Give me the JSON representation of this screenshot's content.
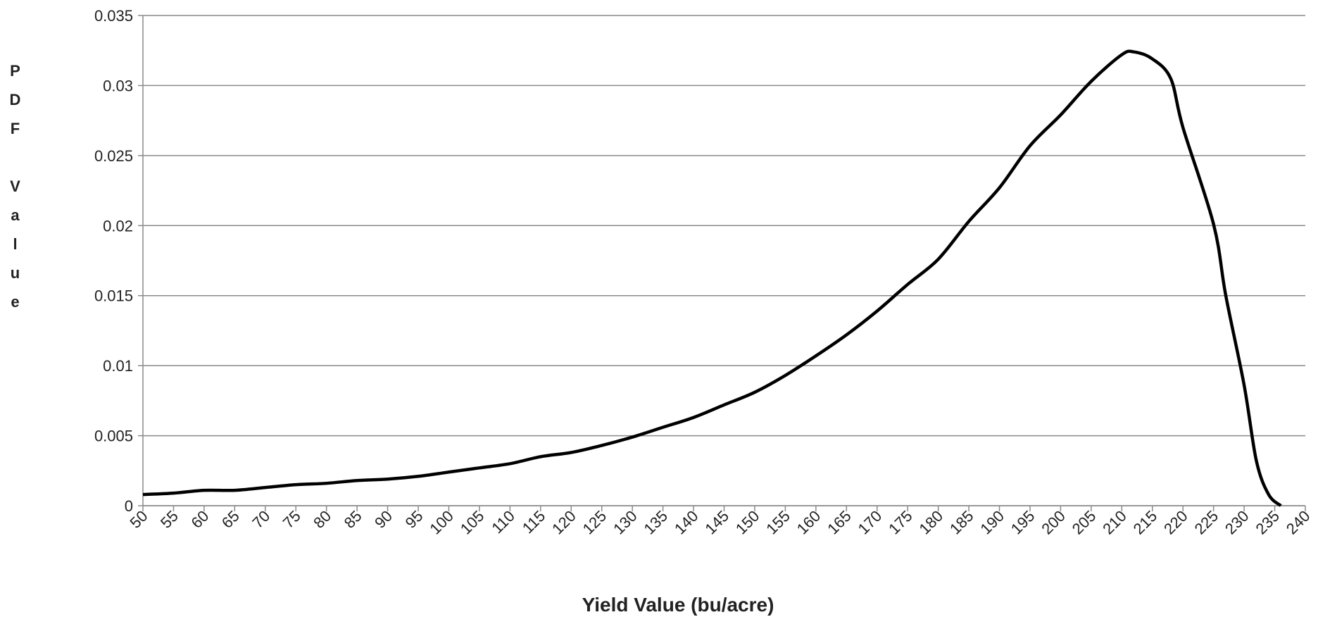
{
  "chart_data": {
    "type": "line",
    "x_label": "Yield Value (bu/acre)",
    "y_label": "PDF Value",
    "x": [
      50,
      55,
      60,
      65,
      70,
      75,
      80,
      85,
      90,
      95,
      100,
      105,
      110,
      115,
      120,
      125,
      130,
      135,
      140,
      145,
      150,
      155,
      160,
      165,
      170,
      175,
      180,
      185,
      190,
      195,
      200,
      205,
      210,
      212,
      215,
      218,
      220,
      225,
      227,
      230,
      232,
      234,
      236
    ],
    "series": [
      {
        "name": "PDF",
        "color": "#000000",
        "values": [
          0.0008,
          0.0009,
          0.0011,
          0.0011,
          0.0013,
          0.0015,
          0.0016,
          0.0018,
          0.0019,
          0.0021,
          0.0024,
          0.0027,
          0.003,
          0.0035,
          0.0038,
          0.0043,
          0.0049,
          0.0056,
          0.0063,
          0.0072,
          0.0081,
          0.0093,
          0.0107,
          0.0122,
          0.0139,
          0.0158,
          0.0176,
          0.0203,
          0.0227,
          0.0257,
          0.0279,
          0.0303,
          0.0322,
          0.0324,
          0.0319,
          0.0305,
          0.027,
          0.0201,
          0.015,
          0.0086,
          0.0032,
          0.0008,
          0
        ]
      }
    ],
    "xlim": [
      50,
      240
    ],
    "xticks": [
      50,
      55,
      60,
      65,
      70,
      75,
      80,
      85,
      90,
      95,
      100,
      105,
      110,
      115,
      120,
      125,
      130,
      135,
      140,
      145,
      150,
      155,
      160,
      165,
      170,
      175,
      180,
      185,
      190,
      195,
      200,
      205,
      210,
      215,
      220,
      225,
      230,
      235,
      240
    ],
    "ylim": [
      0,
      0.035
    ],
    "yticks": [
      0,
      0.005,
      0.01,
      0.015,
      0.02,
      0.025,
      0.03,
      0.035
    ],
    "grid": true
  }
}
